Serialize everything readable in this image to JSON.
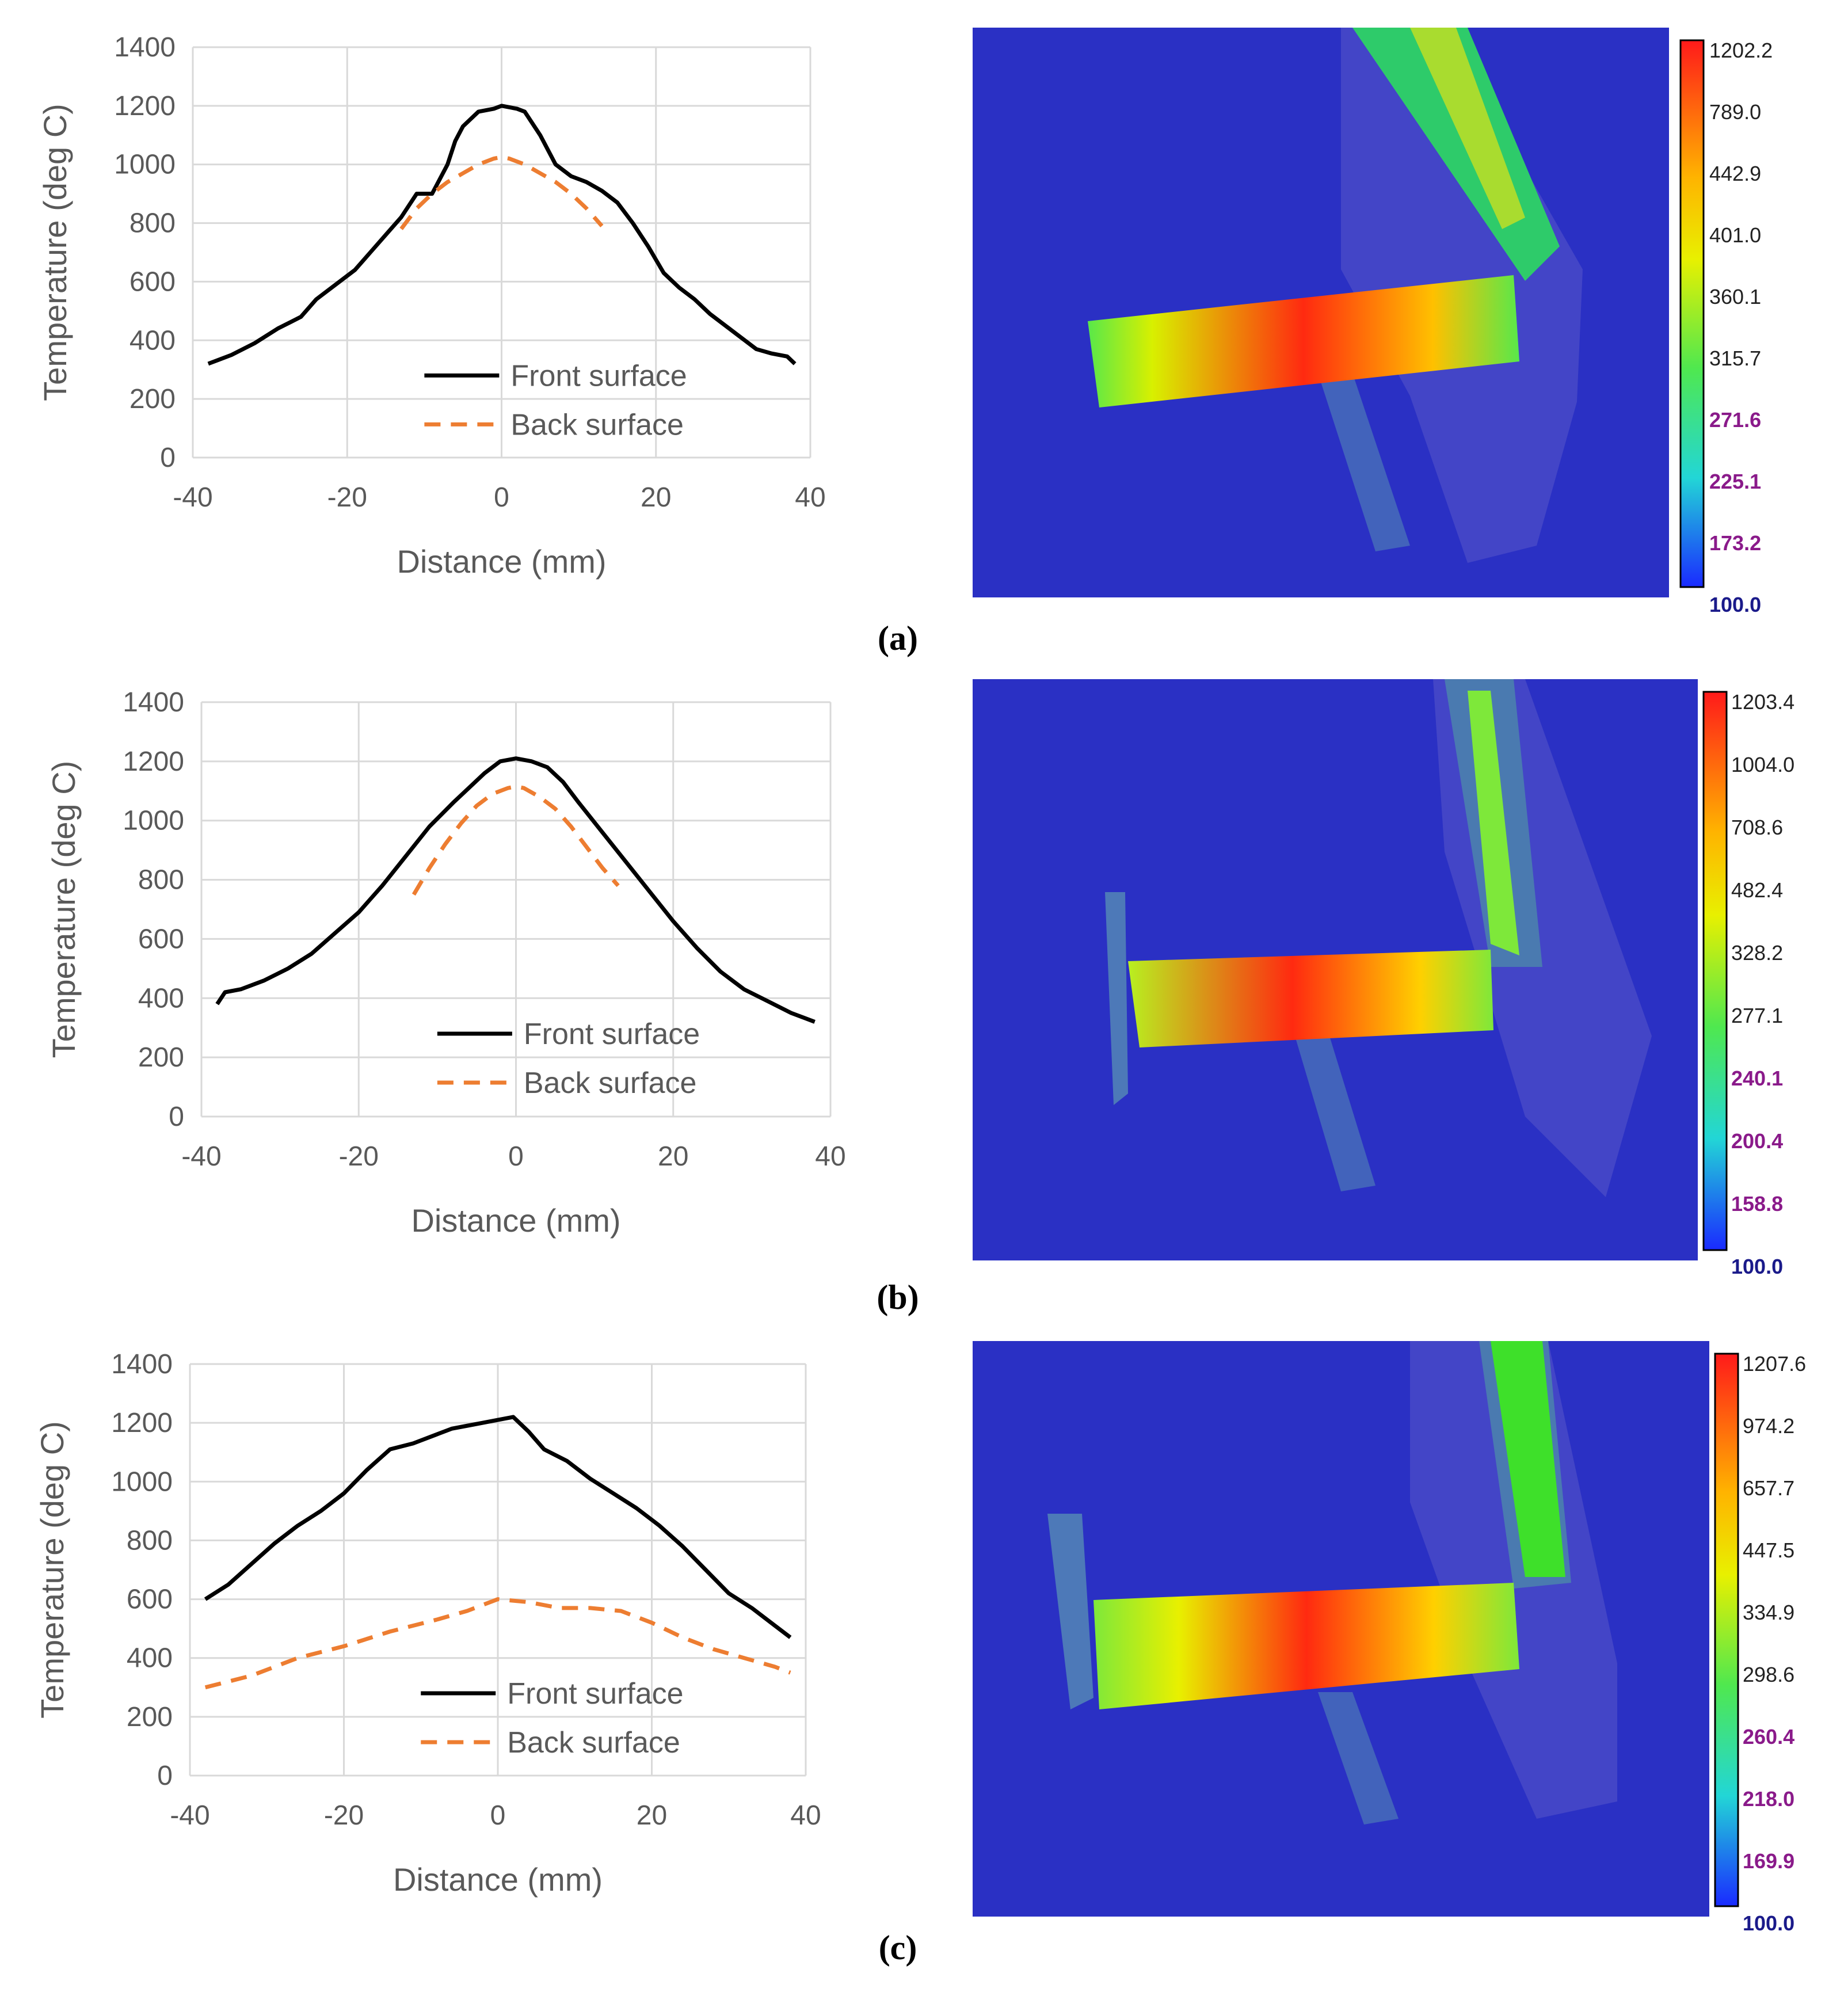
{
  "chart_data": [
    {
      "panel": "a",
      "type": "line",
      "xlabel": "Distance (mm)",
      "ylabel": "Temperature (deg C)",
      "xlim": [
        -40,
        40
      ],
      "ylim": [
        0,
        1400
      ],
      "x_ticks": [
        "-40",
        "-20",
        "0",
        "20",
        "40"
      ],
      "y_ticks": [
        "0",
        "200",
        "400",
        "600",
        "800",
        "1000",
        "1200",
        "1400"
      ],
      "grid": true,
      "legend_position": "bottom-center",
      "series": [
        {
          "name": "Front surface",
          "style": "solid",
          "color": "#000000",
          "x": [
            -38,
            -35,
            -32,
            -29,
            -26,
            -24,
            -21,
            -19,
            -17,
            -15,
            -13,
            -11,
            -9,
            -7,
            -6,
            -5,
            -3,
            -1,
            0,
            2,
            3,
            5,
            7,
            9,
            11,
            13,
            15,
            17,
            19,
            21,
            23,
            25,
            27,
            29,
            31,
            33,
            35,
            37,
            38
          ],
          "y": [
            320,
            350,
            390,
            440,
            480,
            540,
            600,
            640,
            700,
            760,
            820,
            900,
            900,
            1000,
            1080,
            1130,
            1180,
            1190,
            1200,
            1190,
            1180,
            1100,
            1000,
            960,
            940,
            910,
            870,
            800,
            720,
            630,
            580,
            540,
            490,
            450,
            410,
            370,
            355,
            345,
            320
          ]
        },
        {
          "name": "Back surface",
          "style": "dashed",
          "color": "#ED7D31",
          "x": [
            -13,
            -11,
            -9,
            -7,
            -5,
            -3,
            -1,
            0,
            1,
            3,
            5,
            7,
            9,
            11,
            13
          ],
          "y": [
            780,
            850,
            900,
            940,
            970,
            1000,
            1020,
            1025,
            1020,
            1000,
            970,
            940,
            900,
            850,
            790
          ]
        }
      ],
      "colorbar": [
        "1202.2",
        "789.0",
        "442.9",
        "401.0",
        "360.1",
        "315.7",
        "271.6",
        "225.1",
        "173.2",
        "100.0"
      ]
    },
    {
      "panel": "b",
      "type": "line",
      "xlabel": "Distance (mm)",
      "ylabel": "Temperature (deg C)",
      "xlim": [
        -40,
        40
      ],
      "ylim": [
        0,
        1400
      ],
      "x_ticks": [
        "-40",
        "-20",
        "0",
        "20",
        "40"
      ],
      "y_ticks": [
        "0",
        "200",
        "400",
        "600",
        "800",
        "1000",
        "1200",
        "1400"
      ],
      "grid": true,
      "legend_position": "bottom-center",
      "series": [
        {
          "name": "Front surface",
          "style": "solid",
          "color": "#000000",
          "x": [
            -38,
            -37,
            -35,
            -32,
            -29,
            -26,
            -23,
            -20,
            -17,
            -14,
            -11,
            -8,
            -6,
            -4,
            -2,
            0,
            2,
            4,
            6,
            8,
            11,
            14,
            17,
            20,
            23,
            26,
            29,
            32,
            35,
            38
          ],
          "y": [
            380,
            420,
            430,
            460,
            500,
            550,
            620,
            690,
            780,
            880,
            980,
            1060,
            1110,
            1160,
            1200,
            1210,
            1200,
            1180,
            1130,
            1060,
            960,
            860,
            760,
            660,
            570,
            490,
            430,
            390,
            350,
            320
          ]
        },
        {
          "name": "Back surface",
          "style": "dashed",
          "color": "#ED7D31",
          "x": [
            -13,
            -11,
            -9,
            -7,
            -5,
            -3,
            -1,
            0,
            1,
            3,
            5,
            7,
            9,
            11,
            13
          ],
          "y": [
            750,
            840,
            920,
            990,
            1050,
            1090,
            1110,
            1115,
            1110,
            1080,
            1040,
            980,
            910,
            840,
            780
          ]
        }
      ],
      "colorbar": [
        "1203.4",
        "1004.0",
        "708.6",
        "482.4",
        "328.2",
        "277.1",
        "240.1",
        "200.4",
        "158.8",
        "100.0"
      ]
    },
    {
      "panel": "c",
      "type": "line",
      "xlabel": "Distance (mm)",
      "ylabel": "Temperature (deg C)",
      "xlim": [
        -40,
        40
      ],
      "ylim": [
        0,
        1400
      ],
      "x_ticks": [
        "-40",
        "-20",
        "0",
        "20",
        "40"
      ],
      "y_ticks": [
        "0",
        "200",
        "400",
        "600",
        "800",
        "1000",
        "1200",
        "1400"
      ],
      "grid": true,
      "legend_position": "bottom-center",
      "series": [
        {
          "name": "Front surface",
          "style": "solid",
          "color": "#000000",
          "x": [
            -38,
            -35,
            -32,
            -29,
            -26,
            -23,
            -20,
            -17,
            -14,
            -11,
            -8,
            -6,
            -4,
            -2,
            0,
            2,
            4,
            6,
            9,
            12,
            15,
            18,
            21,
            24,
            27,
            30,
            33,
            36,
            38
          ],
          "y": [
            600,
            650,
            720,
            790,
            850,
            900,
            960,
            1040,
            1110,
            1130,
            1160,
            1180,
            1190,
            1200,
            1210,
            1220,
            1170,
            1110,
            1070,
            1010,
            960,
            910,
            850,
            780,
            700,
            620,
            570,
            510,
            470
          ]
        },
        {
          "name": "Back surface",
          "style": "dashed",
          "color": "#ED7D31",
          "x": [
            -38,
            -32,
            -26,
            -20,
            -14,
            -8,
            -4,
            0,
            4,
            8,
            12,
            16,
            20,
            24,
            28,
            32,
            36,
            38
          ],
          "y": [
            300,
            340,
            400,
            440,
            490,
            530,
            560,
            600,
            590,
            570,
            570,
            560,
            520,
            470,
            430,
            400,
            370,
            350
          ]
        }
      ],
      "colorbar": [
        "1207.6",
        "974.2",
        "657.7",
        "447.5",
        "334.9",
        "298.6",
        "260.4",
        "218.0",
        "169.9",
        "100.0"
      ]
    }
  ],
  "captions": [
    "(a)",
    "(b)",
    "(c)"
  ]
}
